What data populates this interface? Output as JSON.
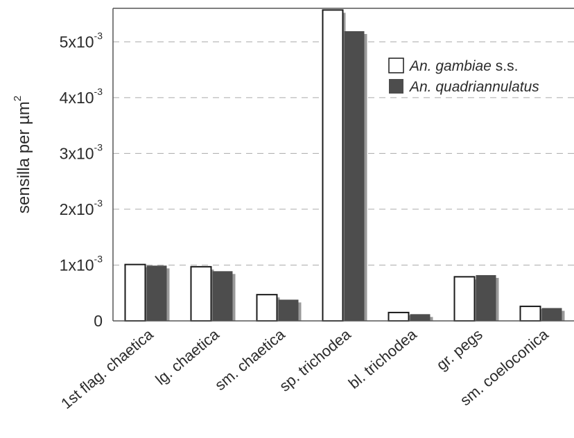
{
  "chart_data": {
    "type": "bar",
    "xlabel": "",
    "ylabel": "sensilla per µm",
    "ylabel_exponent": "2",
    "ylim": [
      0,
      0.0056
    ],
    "grid": "horizontal dashed",
    "legend_position": "top-right",
    "categories": [
      "1st flag. chaetica",
      "lg. chaetica",
      "sm. chaetica",
      "sp. trichodea",
      "bl. trichodea",
      "gr. pegs",
      "sm. coeloconica"
    ],
    "series": [
      {
        "name": "An. gambiae s.s.",
        "name_italic": "An. gambiae",
        "name_suffix": " s.s.",
        "values": [
          0.00101,
          0.00097,
          0.00047,
          0.00557,
          0.00015,
          0.00079,
          0.00026
        ]
      },
      {
        "name": "An. quadriannulatus",
        "name_italic": "An. quadriannulatus",
        "name_suffix": "",
        "values": [
          0.00099,
          0.00089,
          0.00038,
          0.00519,
          0.00012,
          0.00082,
          0.00023
        ]
      }
    ],
    "yticks": [
      {
        "value": 0,
        "base": "0",
        "exp": ""
      },
      {
        "value": 0.001,
        "base": "1x10",
        "exp": "-3"
      },
      {
        "value": 0.002,
        "base": "2x10",
        "exp": "-3"
      },
      {
        "value": 0.003,
        "base": "3x10",
        "exp": "-3"
      },
      {
        "value": 0.004,
        "base": "4x10",
        "exp": "-3"
      },
      {
        "value": 0.005,
        "base": "5x10",
        "exp": "-3"
      }
    ],
    "colors": {
      "series1_fill": "#ffffff",
      "series1_stroke": "#1a1a1a",
      "series2_fill": "#4d4d4d",
      "shadow": "#9a9a9a",
      "axis": "#555555",
      "grid": "#aaaaaa"
    }
  }
}
